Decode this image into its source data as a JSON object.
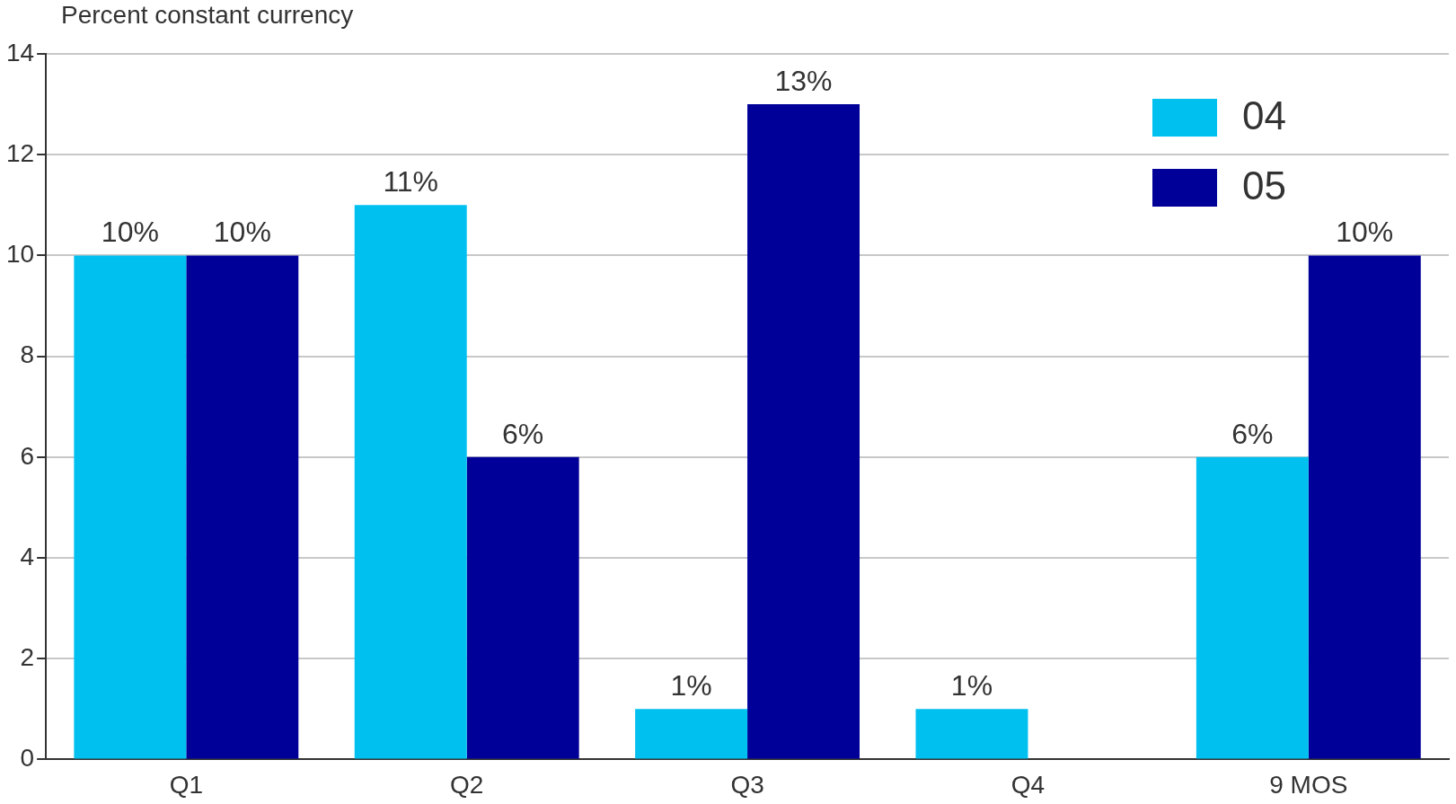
{
  "chart_data": {
    "type": "bar",
    "ylabel": "Percent constant currency",
    "categories": [
      "Q1",
      "Q2",
      "Q3",
      "Q4",
      "9 MOS"
    ],
    "series": [
      {
        "name": "04",
        "color": "#00c0f0",
        "values": [
          10,
          11,
          1,
          1,
          6
        ],
        "value_labels": [
          "10%",
          "11%",
          "1%",
          "1%",
          "6%"
        ]
      },
      {
        "name": "05",
        "color": "#000099",
        "values": [
          10,
          6,
          13,
          null,
          10
        ],
        "value_labels": [
          "10%",
          "6%",
          "13%",
          null,
          "10%"
        ]
      }
    ],
    "ylim": [
      0,
      14
    ],
    "yticks": [
      0,
      2,
      4,
      6,
      8,
      10,
      12,
      14
    ],
    "grid": "y",
    "legend": "top right"
  }
}
